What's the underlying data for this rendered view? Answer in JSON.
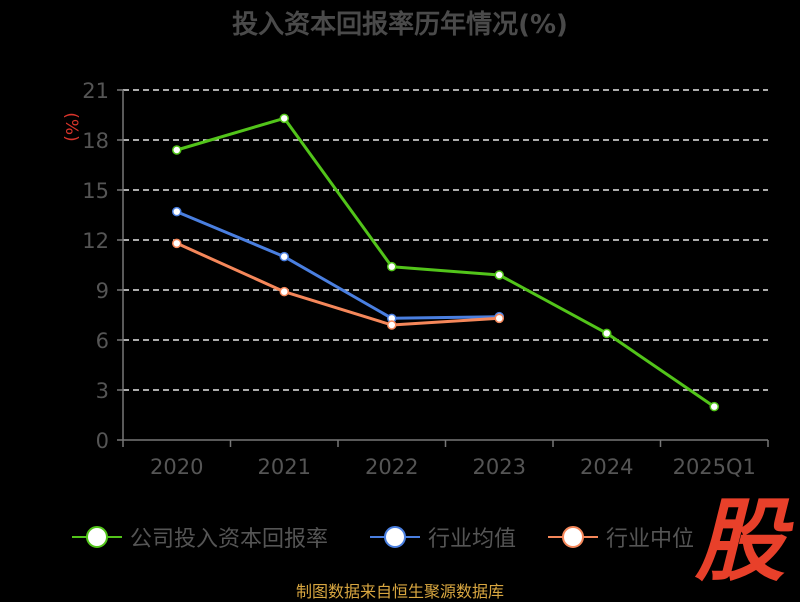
{
  "chart_data": {
    "type": "line",
    "title": "投入资本回报率历年情况(%)",
    "ylabel": "(%)",
    "categories": [
      "2020",
      "2021",
      "2022",
      "2023",
      "2024",
      "2025Q1"
    ],
    "ylim": [
      0,
      21
    ],
    "yticks": [
      0,
      3,
      6,
      9,
      12,
      15,
      18,
      21
    ],
    "grid": true,
    "legend_position": "bottom",
    "series": [
      {
        "name": "公司投入资本回报率",
        "color": "#52c41a",
        "values": [
          17.4,
          19.3,
          10.4,
          9.9,
          6.4,
          2.0
        ]
      },
      {
        "name": "行业均值",
        "color": "#4a7fe0",
        "values": [
          13.7,
          11.0,
          7.3,
          7.4,
          null,
          null
        ]
      },
      {
        "name": "行业中位",
        "color": "#f5875a",
        "values": [
          11.8,
          8.9,
          6.9,
          7.3,
          null,
          null
        ]
      }
    ]
  },
  "source": "制图数据来自恒生聚源数据库",
  "logo": "股"
}
